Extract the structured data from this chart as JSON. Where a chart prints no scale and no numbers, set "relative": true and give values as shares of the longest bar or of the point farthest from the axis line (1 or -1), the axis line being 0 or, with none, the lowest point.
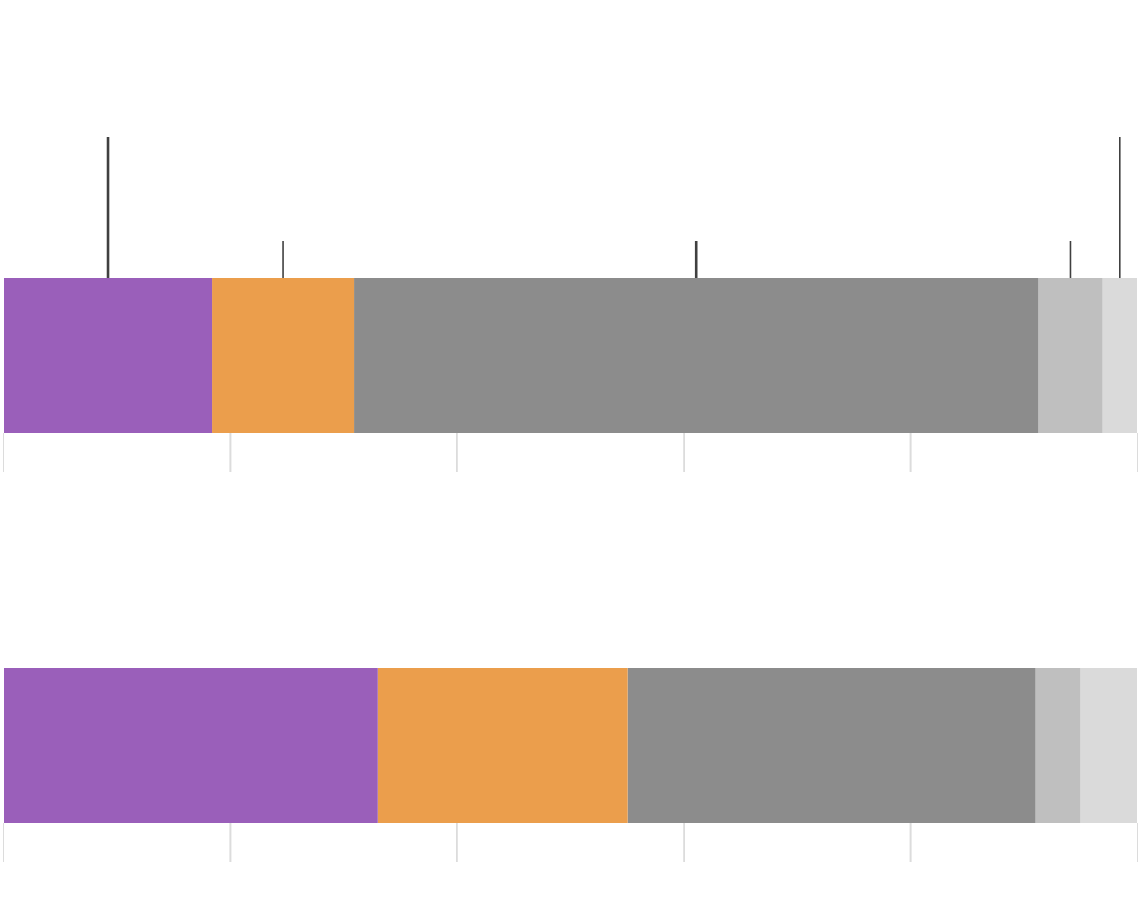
{
  "chart_data": [
    {
      "type": "bar",
      "orientation": "horizontal",
      "stacked": true,
      "relative": true,
      "categories": [
        null
      ],
      "series": [
        {
          "color": "#9a5fba",
          "values": [
            0.184
          ]
        },
        {
          "color": "#eb9e4c",
          "values": [
            0.125
          ]
        },
        {
          "color": "#8c8c8c",
          "values": [
            0.604
          ]
        },
        {
          "color": "#bfbfbf",
          "values": [
            0.056
          ]
        },
        {
          "color": "#dadada",
          "values": [
            0.031
          ]
        }
      ]
    },
    {
      "type": "bar",
      "orientation": "horizontal",
      "stacked": true,
      "relative": true,
      "categories": [
        null
      ],
      "series": [
        {
          "color": "#9a5fba",
          "values": [
            0.33
          ]
        },
        {
          "color": "#eb9e4c",
          "values": [
            0.22
          ]
        },
        {
          "color": "#8c8c8c",
          "values": [
            0.36
          ]
        },
        {
          "color": "#bfbfbf",
          "values": [
            0.04
          ]
        },
        {
          "color": "#dadada",
          "values": [
            0.05
          ]
        }
      ]
    }
  ]
}
